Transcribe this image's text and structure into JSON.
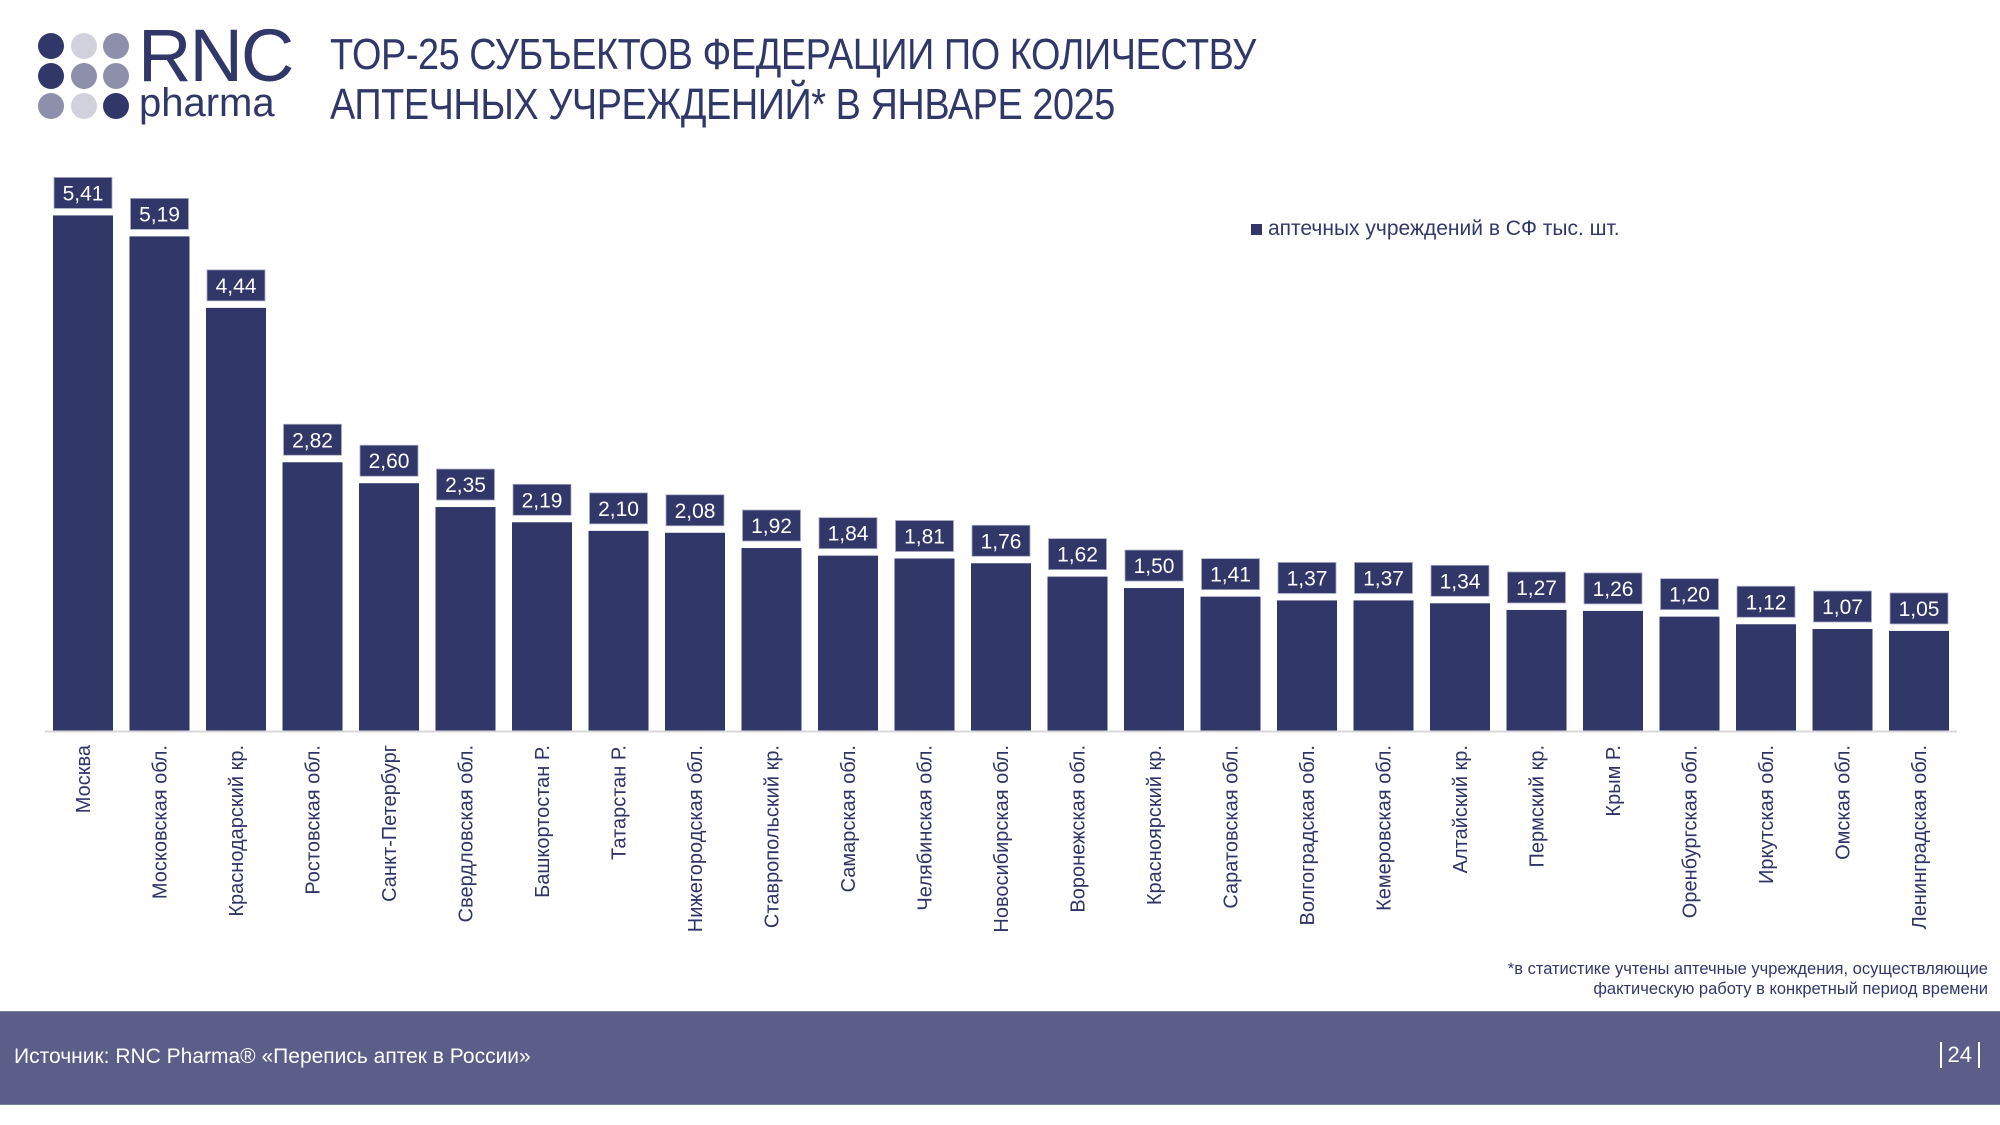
{
  "logo": {
    "main_text": "RNC",
    "sub_text": "pharma",
    "dots": [
      "dark",
      "light",
      "mid",
      "dark",
      "mid",
      "mid",
      "mid",
      "light",
      "dark"
    ],
    "colors": {
      "dark": "#32376a",
      "mid": "#8e90ab",
      "light": "#d0d1dc"
    }
  },
  "header": {
    "title_line1": "TOP-25 СУБЪЕКТОВ ФЕДЕРАЦИИ ПО КОЛИЧЕСТВУ",
    "title_line2": "АПТЕЧНЫХ УЧРЕЖДЕНИЙ* В ЯНВАРЕ 2025"
  },
  "colors": {
    "bar": "#32376a",
    "footer_band": "#5c5e8a",
    "axis": "#d9d9d9"
  },
  "chart_data": {
    "type": "bar",
    "title": "TOP-25 СУБЪЕКТОВ ФЕДЕРАЦИИ ПО КОЛИЧЕСТВУ АПТЕЧНЫХ УЧРЕЖДЕНИЙ* В ЯНВАРЕ 2025",
    "xlabel": "",
    "ylabel": "",
    "ylim": [
      0,
      5.41
    ],
    "grid": false,
    "legend_position": "top-right",
    "series": [
      {
        "name": "аптечных учреждений в СФ тыс. шт.",
        "values": [
          5.41,
          5.19,
          4.44,
          2.82,
          2.6,
          2.35,
          2.19,
          2.1,
          2.08,
          1.92,
          1.84,
          1.81,
          1.76,
          1.62,
          1.5,
          1.41,
          1.37,
          1.37,
          1.34,
          1.27,
          1.26,
          1.2,
          1.12,
          1.07,
          1.05
        ],
        "labels": [
          "5,41",
          "5,19",
          "4,44",
          "2,82",
          "2,60",
          "2,35",
          "2,19",
          "2,10",
          "2,08",
          "1,92",
          "1,84",
          "1,81",
          "1,76",
          "1,62",
          "1,50",
          "1,41",
          "1,37",
          "1,37",
          "1,34",
          "1,27",
          "1,26",
          "1,20",
          "1,12",
          "1,07",
          "1,05"
        ]
      }
    ],
    "categories": [
      "Москва",
      "Московская обл.",
      "Краснодарский кр.",
      "Ростовская обл.",
      "Санкт-Петербург",
      "Свердловская обл.",
      "Башкортостан Р.",
      "Татарстан  Р.",
      "Нижегородская обл.",
      "Ставропольский кр.",
      "Самарская обл.",
      "Челябинская обл.",
      "Новосибирская обл.",
      "Воронежская обл.",
      "Красноярский кр.",
      "Саратовская обл.",
      "Волгоградская обл.",
      "Кемеровская обл.",
      "Алтайский кр.",
      "Пермский кр.",
      "Крым  Р.",
      "Оренбургская обл.",
      "Иркутская обл.",
      "Омская обл.",
      "Ленинградская обл."
    ]
  },
  "legend": {
    "label": "аптечных учреждений в СФ тыс. шт."
  },
  "footnote": {
    "line1": "*в статистике учтены аптечные учреждения, осуществляющие",
    "line2": "фактическую работу в конкретный период времени"
  },
  "footer": {
    "source": "Источник: RNC Pharma® «Перепись аптек в России»",
    "page_number": "24"
  }
}
